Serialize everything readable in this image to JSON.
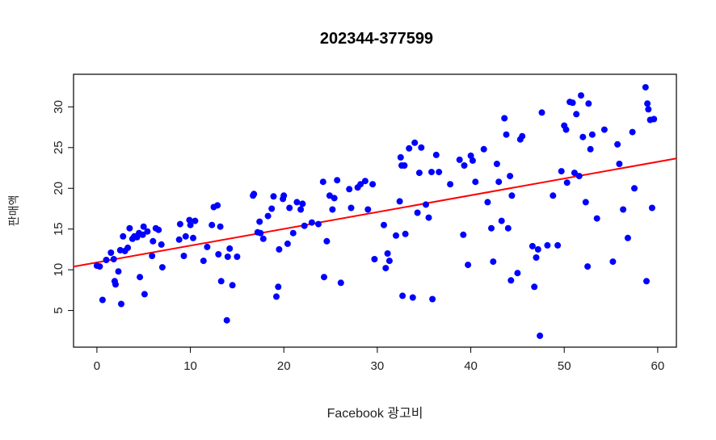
{
  "chart_data": {
    "type": "scatter",
    "title": "202344-377599",
    "xlabel": "Facebook 광고비",
    "ylabel": "판매액",
    "xlim": [
      -2.5,
      62
    ],
    "ylim": [
      0.5,
      34
    ],
    "xticks": [
      "0",
      "10",
      "20",
      "30",
      "40",
      "50",
      "60"
    ],
    "yticks": [
      "5",
      "10",
      "15",
      "20",
      "25",
      "30"
    ],
    "grid": false,
    "legend": "none",
    "point_color": "#0000ff",
    "fit_line_color": "#ff0000",
    "fit_line": {
      "intercept": 10.9,
      "slope": 0.206
    },
    "points": [
      [
        0.0,
        10.5
      ],
      [
        0.3,
        10.4
      ],
      [
        0.6,
        6.3
      ],
      [
        1.0,
        11.2
      ],
      [
        1.5,
        12.1
      ],
      [
        1.8,
        11.3
      ],
      [
        1.9,
        8.6
      ],
      [
        2.0,
        8.2
      ],
      [
        2.3,
        9.8
      ],
      [
        2.5,
        12.4
      ],
      [
        2.6,
        5.8
      ],
      [
        2.8,
        14.1
      ],
      [
        3.0,
        12.3
      ],
      [
        3.3,
        12.7
      ],
      [
        3.5,
        15.1
      ],
      [
        3.8,
        13.8
      ],
      [
        4.0,
        14.1
      ],
      [
        4.3,
        14.0
      ],
      [
        4.5,
        14.5
      ],
      [
        4.6,
        9.1
      ],
      [
        4.9,
        14.3
      ],
      [
        5.0,
        15.3
      ],
      [
        5.1,
        7.0
      ],
      [
        5.4,
        14.7
      ],
      [
        5.9,
        11.7
      ],
      [
        6.0,
        13.5
      ],
      [
        6.3,
        15.1
      ],
      [
        6.6,
        14.9
      ],
      [
        6.9,
        13.1
      ],
      [
        7.0,
        10.3
      ],
      [
        8.8,
        13.7
      ],
      [
        8.9,
        15.6
      ],
      [
        9.3,
        11.7
      ],
      [
        9.5,
        14.1
      ],
      [
        9.9,
        16.1
      ],
      [
        10.0,
        15.5
      ],
      [
        10.3,
        13.9
      ],
      [
        10.5,
        16.0
      ],
      [
        11.4,
        11.1
      ],
      [
        11.8,
        12.8
      ],
      [
        12.3,
        15.5
      ],
      [
        12.5,
        17.7
      ],
      [
        12.9,
        17.9
      ],
      [
        13.0,
        11.9
      ],
      [
        13.2,
        15.3
      ],
      [
        13.3,
        8.6
      ],
      [
        13.9,
        3.8
      ],
      [
        14.0,
        11.6
      ],
      [
        14.2,
        12.6
      ],
      [
        14.5,
        8.1
      ],
      [
        15.0,
        11.6
      ],
      [
        16.7,
        19.1
      ],
      [
        16.8,
        19.3
      ],
      [
        17.2,
        14.6
      ],
      [
        17.4,
        15.9
      ],
      [
        17.5,
        14.5
      ],
      [
        17.8,
        13.8
      ],
      [
        18.3,
        16.6
      ],
      [
        18.7,
        17.5
      ],
      [
        18.9,
        19.0
      ],
      [
        19.2,
        6.7
      ],
      [
        19.4,
        7.9
      ],
      [
        19.5,
        12.5
      ],
      [
        19.9,
        18.7
      ],
      [
        20.0,
        19.1
      ],
      [
        20.4,
        13.2
      ],
      [
        20.6,
        17.6
      ],
      [
        21.0,
        14.5
      ],
      [
        21.4,
        18.3
      ],
      [
        21.8,
        17.4
      ],
      [
        22.0,
        18.1
      ],
      [
        22.2,
        15.4
      ],
      [
        23.0,
        15.8
      ],
      [
        23.7,
        15.6
      ],
      [
        24.2,
        20.8
      ],
      [
        24.3,
        9.1
      ],
      [
        24.6,
        13.5
      ],
      [
        24.9,
        19.1
      ],
      [
        25.2,
        17.4
      ],
      [
        25.4,
        18.8
      ],
      [
        25.7,
        21.0
      ],
      [
        26.1,
        8.4
      ],
      [
        27.0,
        19.9
      ],
      [
        27.2,
        17.6
      ],
      [
        27.9,
        20.1
      ],
      [
        28.2,
        20.5
      ],
      [
        28.7,
        20.9
      ],
      [
        29.0,
        17.4
      ],
      [
        29.5,
        20.5
      ],
      [
        29.7,
        11.3
      ],
      [
        30.7,
        15.5
      ],
      [
        30.9,
        10.2
      ],
      [
        31.1,
        12.0
      ],
      [
        31.3,
        11.1
      ],
      [
        32.0,
        14.2
      ],
      [
        32.4,
        18.4
      ],
      [
        32.5,
        23.8
      ],
      [
        32.6,
        22.8
      ],
      [
        32.7,
        6.8
      ],
      [
        32.9,
        22.8
      ],
      [
        33.0,
        14.4
      ],
      [
        33.4,
        24.9
      ],
      [
        33.8,
        6.6
      ],
      [
        34.0,
        25.6
      ],
      [
        34.3,
        17.0
      ],
      [
        34.5,
        21.9
      ],
      [
        34.7,
        25.0
      ],
      [
        35.2,
        18.0
      ],
      [
        35.5,
        16.4
      ],
      [
        35.8,
        22.0
      ],
      [
        35.9,
        6.4
      ],
      [
        36.3,
        24.1
      ],
      [
        36.6,
        22.0
      ],
      [
        37.8,
        20.5
      ],
      [
        38.8,
        23.5
      ],
      [
        39.2,
        14.3
      ],
      [
        39.3,
        22.8
      ],
      [
        39.7,
        10.6
      ],
      [
        40.0,
        24.0
      ],
      [
        40.2,
        23.4
      ],
      [
        40.5,
        20.8
      ],
      [
        41.4,
        24.8
      ],
      [
        41.8,
        18.3
      ],
      [
        42.2,
        15.1
      ],
      [
        42.4,
        11.0
      ],
      [
        42.8,
        23.0
      ],
      [
        43.0,
        20.8
      ],
      [
        43.3,
        16.0
      ],
      [
        43.6,
        28.6
      ],
      [
        43.8,
        26.6
      ],
      [
        44.0,
        15.1
      ],
      [
        44.2,
        21.5
      ],
      [
        44.3,
        8.7
      ],
      [
        44.4,
        19.1
      ],
      [
        45.0,
        9.6
      ],
      [
        45.3,
        26.0
      ],
      [
        45.5,
        26.4
      ],
      [
        46.6,
        12.9
      ],
      [
        46.8,
        7.9
      ],
      [
        47.0,
        11.5
      ],
      [
        47.2,
        12.5
      ],
      [
        47.4,
        1.9
      ],
      [
        47.6,
        29.3
      ],
      [
        48.2,
        13.0
      ],
      [
        48.8,
        19.1
      ],
      [
        49.3,
        13.0
      ],
      [
        49.7,
        22.1
      ],
      [
        50.0,
        27.7
      ],
      [
        50.2,
        27.2
      ],
      [
        50.3,
        20.7
      ],
      [
        50.6,
        30.6
      ],
      [
        50.9,
        30.5
      ],
      [
        51.1,
        21.9
      ],
      [
        51.3,
        29.1
      ],
      [
        51.6,
        21.5
      ],
      [
        51.8,
        31.4
      ],
      [
        52.0,
        26.3
      ],
      [
        52.3,
        18.3
      ],
      [
        52.5,
        10.4
      ],
      [
        52.6,
        30.4
      ],
      [
        52.8,
        24.8
      ],
      [
        53.0,
        26.6
      ],
      [
        53.5,
        16.3
      ],
      [
        54.3,
        27.2
      ],
      [
        55.2,
        11.0
      ],
      [
        55.7,
        25.4
      ],
      [
        55.9,
        23.0
      ],
      [
        56.3,
        17.4
      ],
      [
        56.8,
        13.9
      ],
      [
        57.3,
        26.9
      ],
      [
        57.5,
        20.0
      ],
      [
        58.7,
        32.4
      ],
      [
        58.8,
        8.6
      ],
      [
        58.9,
        30.4
      ],
      [
        59.0,
        29.7
      ],
      [
        59.2,
        28.4
      ],
      [
        59.4,
        17.6
      ],
      [
        59.6,
        28.5
      ]
    ]
  }
}
